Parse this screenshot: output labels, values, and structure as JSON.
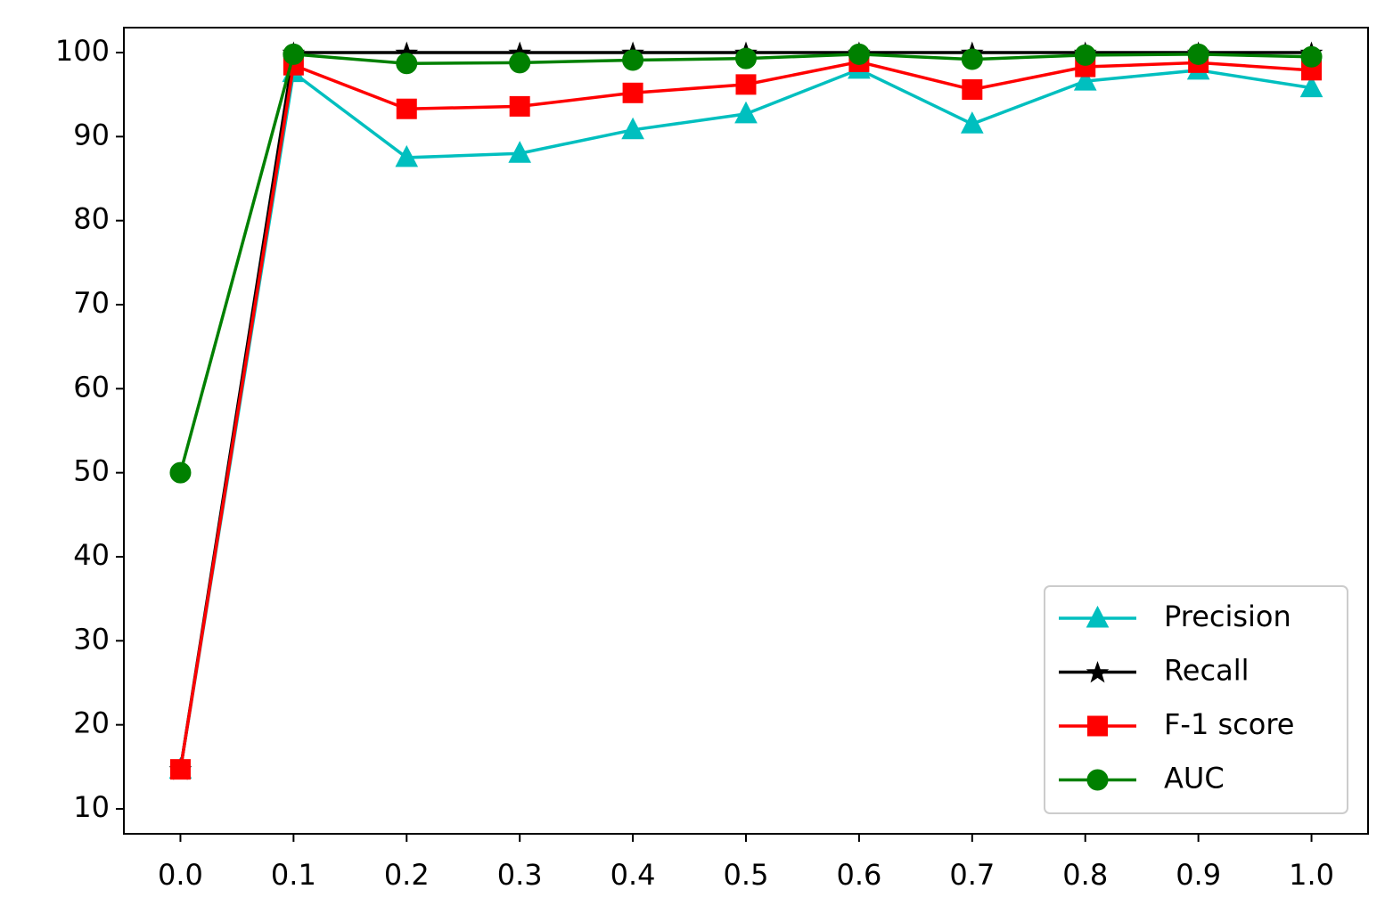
{
  "chart_data": {
    "type": "line",
    "x": [
      0,
      0.1,
      0.2,
      0.3,
      0.4,
      0.5,
      0.6,
      0.7,
      0.8,
      0.9,
      1
    ],
    "series": [
      {
        "name": "Precision",
        "color": "#00bfbf",
        "marker": "triangle",
        "values": [
          14.7,
          97.6,
          87.5,
          88.0,
          90.8,
          92.7,
          98.0,
          91.5,
          96.6,
          97.9,
          95.8
        ]
      },
      {
        "name": "Recall",
        "color": "#000000",
        "marker": "star",
        "values": [
          14.7,
          100,
          100,
          100,
          100,
          100,
          100,
          100,
          100,
          100,
          100
        ]
      },
      {
        "name": "F-1 score",
        "color": "#ff0000",
        "marker": "square",
        "values": [
          14.7,
          98.5,
          93.3,
          93.6,
          95.2,
          96.2,
          98.9,
          95.6,
          98.3,
          98.8,
          97.9
        ]
      },
      {
        "name": "AUC",
        "color": "#008000",
        "marker": "circle",
        "values": [
          50,
          99.8,
          98.7,
          98.8,
          99.1,
          99.3,
          99.8,
          99.2,
          99.7,
          99.8,
          99.5
        ]
      }
    ],
    "xlim": [
      -0.05,
      1.05
    ],
    "xticks": [
      {
        "value": 0,
        "label": "0.0"
      },
      0.1,
      0.2,
      0.3,
      0.4,
      0.5,
      0.6,
      0.7,
      0.8,
      0.9,
      {
        "value": 1,
        "label": "1.0"
      }
    ],
    "ylim": [
      7.03,
      102.97
    ],
    "yticks": [
      10,
      20,
      30,
      40,
      50,
      60,
      70,
      80,
      90,
      100
    ],
    "legend": "lower right"
  }
}
